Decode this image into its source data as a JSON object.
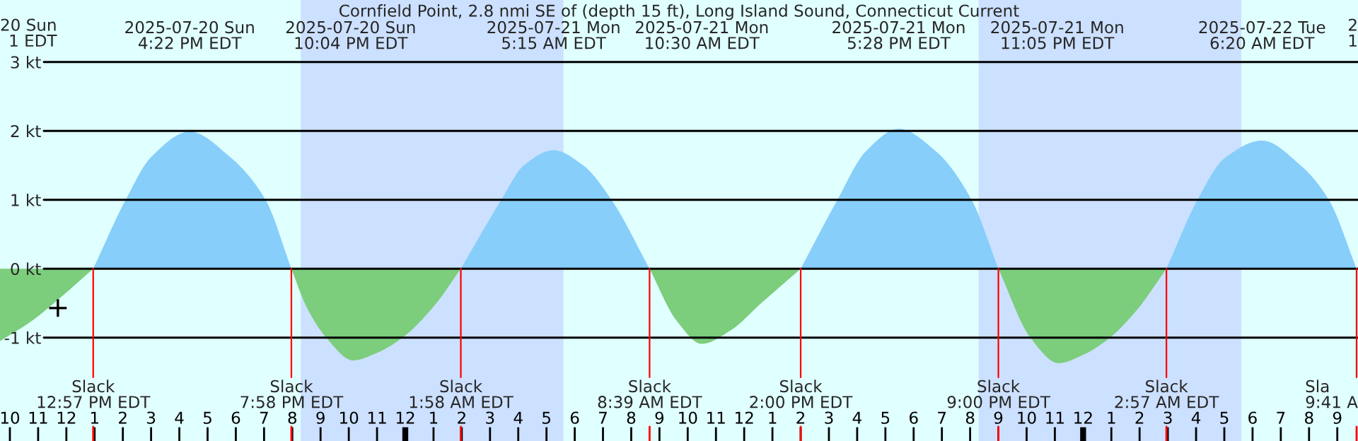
{
  "chart_data": {
    "type": "area",
    "title": "Cornfield Point, 2.8 nmi SE of (depth 15 ft), Long Island Sound, Connecticut Current",
    "series": [
      {
        "color": "#87cefa",
        "x": [
          "2025-07-20T12:57",
          "2025-07-20T14:06",
          "2025-07-20T15:00",
          "2025-07-20T16:22",
          "2025-07-20T17:48",
          "2025-07-20T19:03",
          "2025-07-20T19:58",
          "2025-07-20T22:00",
          "2025-07-21T01:58",
          "2025-07-21T03:24",
          "2025-07-21T04:12",
          "2025-07-21T05:15",
          "2025-07-21T06:18",
          "2025-07-21T07:18",
          "2025-07-21T08:39",
          "2025-07-21T11:00",
          "2025-07-21T14:00",
          "2025-07-21T15:18",
          "2025-07-21T16:18",
          "2025-07-21T17:28",
          "2025-07-21T18:48",
          "2025-07-21T20:03",
          "2025-07-21T21:00",
          "2025-07-22T00:00",
          "2025-07-22T02:57",
          "2025-07-22T04:03",
          "2025-07-22T05:00",
          "2025-07-22T06:20",
          "2025-07-22T07:42",
          "2025-07-22T08:42",
          "2025-07-22T09:41"
        ],
        "values": [
          0,
          1.0,
          1.62,
          1.99,
          1.62,
          1.0,
          0,
          null,
          0,
          1.0,
          1.5,
          1.72,
          1.5,
          1.0,
          0,
          null,
          0,
          1.0,
          1.7,
          2.03,
          1.7,
          1.0,
          0,
          null,
          0,
          1.0,
          1.6,
          1.86,
          1.5,
          1.0,
          0
        ]
      },
      {
        "color": "#7ccd7c",
        "x": [
          "2025-07-20T09:39",
          "2025-07-20T10:48",
          "2025-07-20T11:42",
          "2025-07-20T12:57",
          "2025-07-20T16:00",
          "2025-07-20T19:58",
          "2025-07-20T20:30",
          "2025-07-20T21:12",
          "2025-07-20T22:09",
          "2025-07-20T23:00",
          "2025-07-20T23:54",
          "2025-07-21T01:00",
          "2025-07-21T01:58",
          "2025-07-21T05:00",
          "2025-07-21T08:39",
          "2025-07-21T09:36",
          "2025-07-21T10:30",
          "2025-07-21T11:30",
          "2025-07-21T12:36",
          "2025-07-21T14:00",
          "2025-07-21T17:00",
          "2025-07-21T21:00",
          "2025-07-21T22:08",
          "2025-07-21T23:08",
          "2025-07-22T00:00",
          "2025-07-22T00:57",
          "2025-07-22T01:54",
          "2025-07-22T02:57"
        ],
        "values": [
          -1.05,
          -0.75,
          -0.45,
          0,
          null,
          0,
          -0.55,
          -1.0,
          -1.33,
          -1.22,
          -1.0,
          -0.55,
          0,
          null,
          0,
          -0.75,
          -1.09,
          -0.9,
          -0.5,
          0,
          null,
          0,
          -1.0,
          -1.37,
          -1.25,
          -1.0,
          -0.6,
          0
        ]
      },
      {
        "type": "scatter",
        "color": "#000000",
        "marker": "cross",
        "x": [
          "2025-07-20T11:42"
        ],
        "values": [
          -0.57
        ]
      }
    ],
    "xlim": [
      "2025-07-20T09:39",
      "2025-07-22T09:44"
    ],
    "ylim": [
      -2.5,
      3.9
    ],
    "yticks": [
      {
        "value": -1,
        "label": "-1 kt"
      },
      {
        "value": 0,
        "label": "0 kt"
      },
      {
        "value": 1,
        "label": "1 kt"
      },
      {
        "value": 2,
        "label": "2 kt"
      },
      {
        "value": 3,
        "label": "3 kt"
      }
    ],
    "xticks": [
      {
        "value": "2025-07-20T10:00",
        "label": "10"
      },
      {
        "value": "2025-07-20T11:00",
        "label": "11"
      },
      {
        "value": "2025-07-20T12:00",
        "label": "12"
      },
      {
        "value": "2025-07-20T13:00",
        "label": "1"
      },
      {
        "value": "2025-07-20T14:00",
        "label": "2"
      },
      {
        "value": "2025-07-20T15:00",
        "label": "3"
      },
      {
        "value": "2025-07-20T16:00",
        "label": "4"
      },
      {
        "value": "2025-07-20T17:00",
        "label": "5"
      },
      {
        "value": "2025-07-20T18:00",
        "label": "6"
      },
      {
        "value": "2025-07-20T19:00",
        "label": "7"
      },
      {
        "value": "2025-07-20T20:00",
        "label": "8"
      },
      {
        "value": "2025-07-20T21:00",
        "label": "9"
      },
      {
        "value": "2025-07-20T22:00",
        "label": "10"
      },
      {
        "value": "2025-07-20T23:00",
        "label": "11"
      },
      {
        "value": "2025-07-21T00:00",
        "label": "12"
      },
      {
        "value": "2025-07-21T01:00",
        "label": "1"
      },
      {
        "value": "2025-07-21T02:00",
        "label": "2"
      },
      {
        "value": "2025-07-21T03:00",
        "label": "3"
      },
      {
        "value": "2025-07-21T04:00",
        "label": "4"
      },
      {
        "value": "2025-07-21T05:00",
        "label": "5"
      },
      {
        "value": "2025-07-21T06:00",
        "label": "6"
      },
      {
        "value": "2025-07-21T07:00",
        "label": "7"
      },
      {
        "value": "2025-07-21T08:00",
        "label": "8"
      },
      {
        "value": "2025-07-21T09:00",
        "label": "9"
      },
      {
        "value": "2025-07-21T10:00",
        "label": "10"
      },
      {
        "value": "2025-07-21T11:00",
        "label": "11"
      },
      {
        "value": "2025-07-21T12:00",
        "label": "12"
      },
      {
        "value": "2025-07-21T13:00",
        "label": "1"
      },
      {
        "value": "2025-07-21T14:00",
        "label": "2"
      },
      {
        "value": "2025-07-21T15:00",
        "label": "3"
      },
      {
        "value": "2025-07-21T16:00",
        "label": "4"
      },
      {
        "value": "2025-07-21T17:00",
        "label": "5"
      },
      {
        "value": "2025-07-21T18:00",
        "label": "6"
      },
      {
        "value": "2025-07-21T19:00",
        "label": "7"
      },
      {
        "value": "2025-07-21T20:00",
        "label": "8"
      },
      {
        "value": "2025-07-21T21:00",
        "label": "9"
      },
      {
        "value": "2025-07-21T22:00",
        "label": "10"
      },
      {
        "value": "2025-07-21T23:00",
        "label": "11"
      },
      {
        "value": "2025-07-22T00:00",
        "label": "12"
      },
      {
        "value": "2025-07-22T01:00",
        "label": "1"
      },
      {
        "value": "2025-07-22T02:00",
        "label": "2"
      },
      {
        "value": "2025-07-22T03:00",
        "label": "3"
      },
      {
        "value": "2025-07-22T04:00",
        "label": "4"
      },
      {
        "value": "2025-07-22T05:00",
        "label": "5"
      },
      {
        "value": "2025-07-22T06:00",
        "label": "6"
      },
      {
        "value": "2025-07-22T07:00",
        "label": "7"
      },
      {
        "value": "2025-07-22T08:00",
        "label": "8"
      },
      {
        "value": "2025-07-22T09:00",
        "label": "9"
      }
    ],
    "x2lim": [
      "2025-07-20T09:39",
      "2025-07-22T09:44"
    ],
    "x2ticks": [
      {
        "value": "2025-07-20T16:22",
        "label": "2025-07-20 Sun\n4:22 PM EDT"
      },
      {
        "value": "2025-07-20T22:04",
        "label": "2025-07-20 Sun\n10:04 PM EDT"
      },
      {
        "value": "2025-07-21T05:15",
        "label": "2025-07-21 Mon\n5:15 AM EDT"
      },
      {
        "value": "2025-07-21T10:30",
        "label": "2025-07-21 Mon\n10:30 AM EDT"
      },
      {
        "value": "2025-07-21T17:28",
        "label": "2025-07-21 Mon\n5:28 PM EDT"
      },
      {
        "value": "2025-07-21T23:05",
        "label": "2025-07-21 Mon\n11:05 PM EDT"
      },
      {
        "value": "2025-07-22T06:20",
        "label": "2025-07-22 Tue\n6:20 AM EDT"
      }
    ],
    "ref_lines": [
      {
        "axis": "x",
        "value": "2025-07-20T12:57",
        "label": "Slack\n12:57 PM EDT",
        "color": "#ff0000"
      },
      {
        "axis": "x",
        "value": "2025-07-20T19:58",
        "label": "Slack\n7:58 PM EDT",
        "color": "#ff0000"
      },
      {
        "axis": "x",
        "value": "2025-07-21T01:58",
        "label": "Slack\n1:58 AM EDT",
        "color": "#ff0000"
      },
      {
        "axis": "x",
        "value": "2025-07-21T08:39",
        "label": "Slack\n8:39 AM EDT",
        "color": "#ff0000"
      },
      {
        "axis": "x",
        "value": "2025-07-21T14:00",
        "label": "Slack\n2:00 PM EDT",
        "color": "#ff0000"
      },
      {
        "axis": "x",
        "value": "2025-07-21T21:00",
        "label": "Slack\n9:00 PM EDT",
        "color": "#ff0000"
      },
      {
        "axis": "x",
        "value": "2025-07-22T02:57",
        "label": "Slack\n2:57 AM EDT",
        "color": "#ff0000"
      },
      {
        "axis": "x",
        "value": "2025-07-22T09:41",
        "color": "#ff0000"
      }
    ],
    "grid": "y",
    "bands": [
      {
        "axis": "x",
        "from": "2025-07-20T20:18",
        "to": "2025-07-21T05:36",
        "color": "#cce0ff"
      },
      {
        "axis": "x",
        "from": "2025-07-21T20:18",
        "to": "2025-07-22T05:36",
        "color": "#cce0ff"
      }
    ],
    "annotations": [
      "20 Sun\n1 EDT",
      "2\n1",
      "Sla\n9:41 A"
    ]
  }
}
